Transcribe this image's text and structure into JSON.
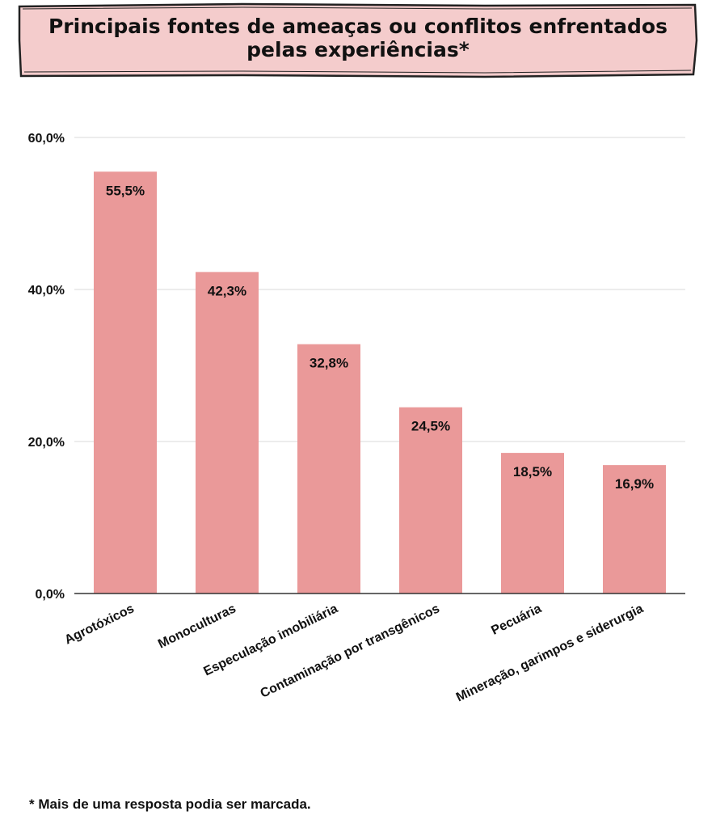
{
  "title": {
    "line1": "Principais fontes de ameaças ou conflitos enfrentados",
    "line2": "pelas experiências*"
  },
  "colors": {
    "banner_fill": "#f4cccc",
    "bar": "#ea9999",
    "grid": "#d9d9d9",
    "axis": "#333333",
    "text": "#111111"
  },
  "chart_data": {
    "type": "bar",
    "categories": [
      "Agrotóxicos",
      "Monoculturas",
      "Especulação imobiliária",
      "Contaminação por transgênicos",
      "Pecuária",
      "Mineração, garimpos e siderurgia"
    ],
    "values": [
      55.5,
      42.3,
      32.8,
      24.5,
      18.5,
      16.9
    ],
    "value_labels": [
      "55,5%",
      "42,3%",
      "32,8%",
      "24,5%",
      "18,5%",
      "16,9%"
    ],
    "yticks": [
      0,
      20,
      40,
      60
    ],
    "ytick_labels": [
      "0,0%",
      "20,0%",
      "40,0%",
      "60,0%"
    ],
    "ylim": [
      0,
      60
    ],
    "grid": true,
    "xlabel": "",
    "ylabel": ""
  },
  "footnote": "* Mais de uma resposta podia ser marcada."
}
